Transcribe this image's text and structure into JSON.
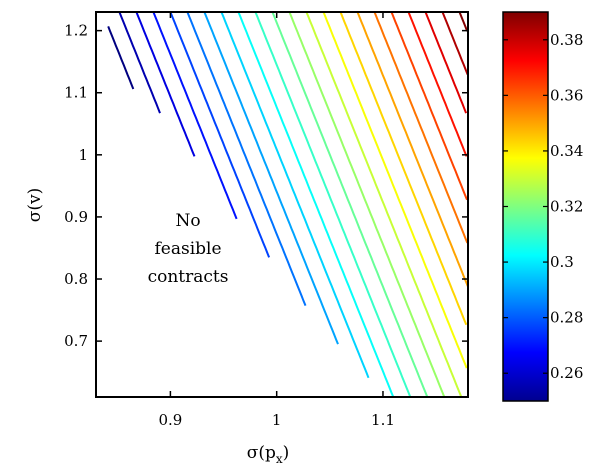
{
  "chart_data": {
    "type": "contour",
    "xlabel": "σ(p_x)",
    "xlabel_main": "σ(p",
    "xlabel_sub": "x",
    "xlabel_close": ")",
    "ylabel": "σ(v)",
    "xlim": [
      0.83,
      1.18
    ],
    "ylim": [
      0.61,
      1.23
    ],
    "xticks": [
      0.9,
      1.0,
      1.1
    ],
    "xtick_labels": [
      "0.9",
      "1",
      "1.1"
    ],
    "yticks": [
      0.7,
      0.8,
      0.9,
      1.0,
      1.1,
      1.2
    ],
    "ytick_labels": [
      "0.7",
      "0.8",
      "0.9",
      "1",
      "1.1",
      "1.2"
    ],
    "annotation_lines": [
      "No",
      "feasible",
      "contracts"
    ],
    "feasibility_boundary": [
      {
        "x": 0.84,
        "y": 1.11
      },
      {
        "x": 0.87,
        "y": 1.1
      },
      {
        "x": 0.9,
        "y": 1.05
      },
      {
        "x": 0.93,
        "y": 0.98
      },
      {
        "x": 0.96,
        "y": 0.9
      },
      {
        "x": 0.99,
        "y": 0.84
      },
      {
        "x": 1.01,
        "y": 0.79
      },
      {
        "x": 1.03,
        "y": 0.75
      },
      {
        "x": 1.06,
        "y": 0.69
      },
      {
        "x": 1.09,
        "y": 0.63
      },
      {
        "x": 1.105,
        "y": 0.61
      }
    ],
    "contour_levels": [
      0.25,
      0.26,
      0.27,
      0.28,
      0.29,
      0.3,
      0.31,
      0.32,
      0.33,
      0.34,
      0.35,
      0.36,
      0.37,
      0.38,
      0.39
    ],
    "contour_anchors": [
      {
        "level": 0.25,
        "x_at_top": 0.836
      },
      {
        "level": 0.26,
        "x_at_top": 0.852
      },
      {
        "level": 0.27,
        "x_at_top": 0.868
      },
      {
        "level": 0.28,
        "x_at_top": 0.884
      },
      {
        "level": 0.29,
        "x_at_top": 0.9
      },
      {
        "level": 0.3,
        "x_at_top": 0.916
      },
      {
        "level": 0.31,
        "x_at_top": 0.932
      },
      {
        "level": 0.32,
        "x_at_top": 0.948
      },
      {
        "level": 0.33,
        "x_at_top": 0.964
      },
      {
        "level": 0.34,
        "x_at_top": 0.98
      },
      {
        "level": 0.35,
        "x_at_top": 0.996
      },
      {
        "level": 0.36,
        "x_at_top": 1.012
      },
      {
        "level": 0.37,
        "x_at_top": 1.028
      },
      {
        "level": 0.38,
        "x_at_top": 1.044
      },
      {
        "level": 0.39,
        "x_at_top": 1.06
      },
      {
        "level": 0.4,
        "x_at_top": 1.076
      },
      {
        "level": 0.41,
        "x_at_top": 1.092
      },
      {
        "level": 0.42,
        "x_at_top": 1.108
      },
      {
        "level": 0.43,
        "x_at_top": 1.124
      },
      {
        "level": 0.44,
        "x_at_top": 1.14
      },
      {
        "level": 0.45,
        "x_at_top": 1.156
      },
      {
        "level": 0.46,
        "x_at_top": 1.172
      }
    ],
    "contour_slope_dx_per_dy": 0.235,
    "colorbar": {
      "range": [
        0.25,
        0.39
      ],
      "ticks": [
        0.26,
        0.28,
        0.3,
        0.32,
        0.34,
        0.36,
        0.38
      ],
      "tick_labels": [
        "0.26",
        "0.28",
        "0.3",
        "0.32",
        "0.34",
        "0.36",
        "0.38"
      ],
      "colormap": "jet"
    }
  }
}
